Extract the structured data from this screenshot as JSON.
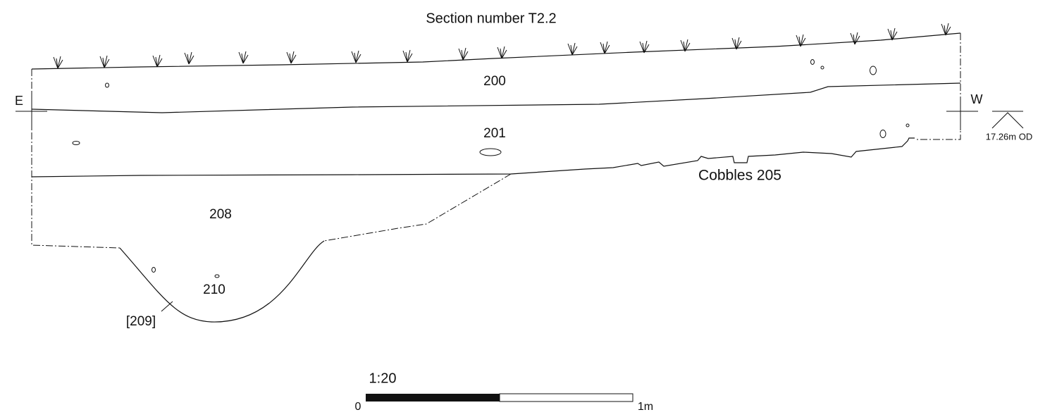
{
  "header": {
    "title": "Section number T2.2"
  },
  "orientation": {
    "left": "E",
    "right": "W",
    "datum": "17.26m OD"
  },
  "contexts": {
    "topsoil": "200",
    "layer": "201",
    "fill_upper": "208",
    "fill_lower": "210",
    "cut": "[209]",
    "cobbles": "Cobbles 205"
  },
  "scale": {
    "ratio": "1:20",
    "start": "0",
    "end": "1m"
  }
}
